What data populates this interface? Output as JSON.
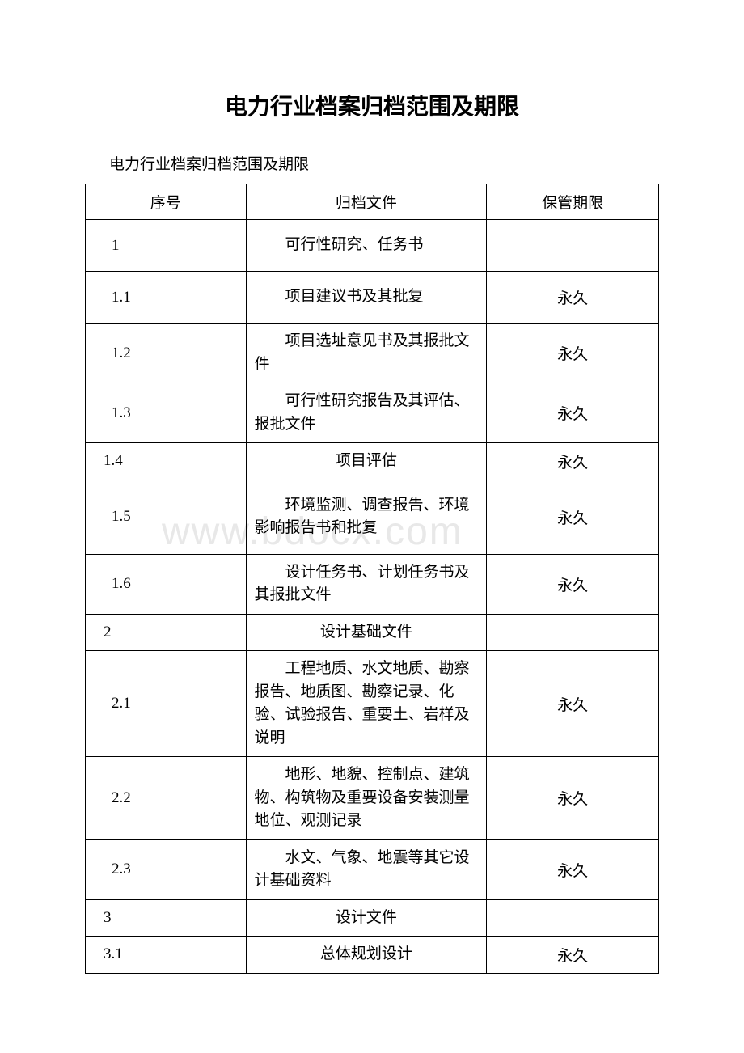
{
  "title": "电力行业档案归档范围及期限",
  "subtitle": "电力行业档案归档范围及期限",
  "watermark": "www.bdocx.com",
  "headers": {
    "num": "序号",
    "file": "归档文件",
    "period": "保管期限"
  },
  "rows": [
    {
      "num": "1",
      "file": "可行性研究、任务书",
      "period": "",
      "height": "mid",
      "numPad": true
    },
    {
      "num": "1.1",
      "file": "项目建议书及其批复",
      "period": "永久",
      "height": "mid",
      "numPad": true
    },
    {
      "num": "1.2",
      "file": "项目选址意见书及其报批文件",
      "period": "永久",
      "height": "mid",
      "numPad": true
    },
    {
      "num": "1.3",
      "file": "可行性研究报告及其评估、报批文件",
      "period": "永久",
      "height": "mid",
      "numPad": true
    },
    {
      "num": "1.4",
      "file": "项目评估",
      "period": "永久",
      "height": "short",
      "numPad": false,
      "center": true
    },
    {
      "num": "1.5",
      "file": "环境监测、调查报告、环境影响报告书和批复",
      "period": "永久",
      "height": "tall",
      "numPad": true
    },
    {
      "num": "1.6",
      "file": "设计任务书、计划任务书及其报批文件",
      "period": "永久",
      "height": "mid",
      "numPad": true
    },
    {
      "num": "2",
      "file": "设计基础文件",
      "period": "",
      "height": "short",
      "numPad": false,
      "center": true
    },
    {
      "num": "2.1",
      "file": "工程地质、水文地质、勘察报告、地质图、勘察记录、化验、试验报告、重要土、岩样及说明",
      "period": "永久",
      "height": "auto",
      "numPad": true
    },
    {
      "num": "2.2",
      "file": "地形、地貌、控制点、建筑物、构筑物及重要设备安装测量地位、观测记录",
      "period": "永久",
      "height": "auto",
      "numPad": true
    },
    {
      "num": "2.3",
      "file": "水文、气象、地震等其它设计基础资料",
      "period": "永久",
      "height": "mid",
      "numPad": true
    },
    {
      "num": "3",
      "file": "设计文件",
      "period": "",
      "height": "short",
      "numPad": false,
      "center": true
    },
    {
      "num": "3.1",
      "file": "总体规划设计",
      "period": "永久",
      "height": "short",
      "numPad": false,
      "center": true
    }
  ]
}
